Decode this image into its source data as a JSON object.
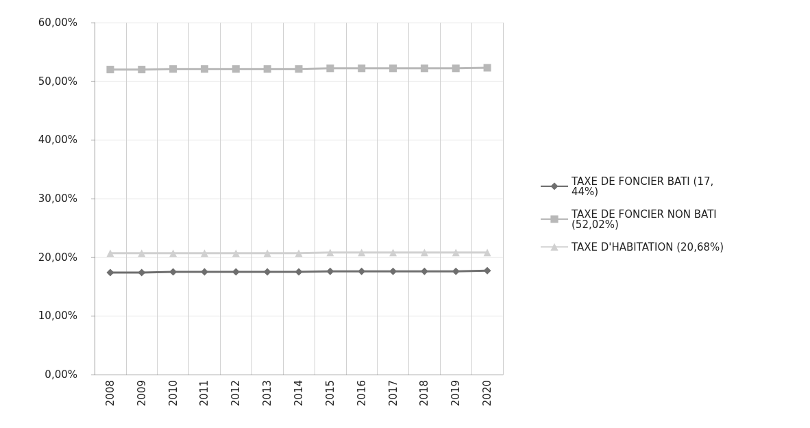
{
  "chart_data": {
    "type": "line",
    "categories": [
      "2008",
      "2009",
      "2010",
      "2011",
      "2012",
      "2013",
      "2014",
      "2015",
      "2016",
      "2017",
      "2018",
      "2019",
      "2020"
    ],
    "series": [
      {
        "name": "TAXE DE FONCIER BATI (17,44%)",
        "color": "#6e6e6e",
        "marker": "diamond",
        "values": [
          17.4,
          17.4,
          17.5,
          17.5,
          17.5,
          17.5,
          17.5,
          17.6,
          17.6,
          17.6,
          17.6,
          17.6,
          17.7
        ]
      },
      {
        "name": "TAXE DE FONCIER NON BATI (52,02%)",
        "color": "#b8b8b8",
        "marker": "square",
        "values": [
          52,
          52,
          52.1,
          52.1,
          52.1,
          52.1,
          52.1,
          52.2,
          52.2,
          52.2,
          52.2,
          52.2,
          52.3
        ]
      },
      {
        "name": "TAXE D'HABITATION (20,68%)",
        "color": "#d0d0d0",
        "marker": "triangle",
        "values": [
          20.7,
          20.7,
          20.7,
          20.7,
          20.7,
          20.7,
          20.7,
          20.8,
          20.8,
          20.8,
          20.8,
          20.8,
          20.8
        ]
      }
    ],
    "ylim": [
      0,
      60
    ],
    "yticks": [
      {
        "value": 0,
        "label": "0,00%"
      },
      {
        "value": 10,
        "label": "10,00%"
      },
      {
        "value": 20,
        "label": "20,00%"
      },
      {
        "value": 30,
        "label": "30,00%"
      },
      {
        "value": 40,
        "label": "40,00%"
      },
      {
        "value": 50,
        "label": "50,00%"
      },
      {
        "value": 60,
        "label": "60,00%"
      }
    ],
    "grid": true,
    "legend": "right"
  }
}
